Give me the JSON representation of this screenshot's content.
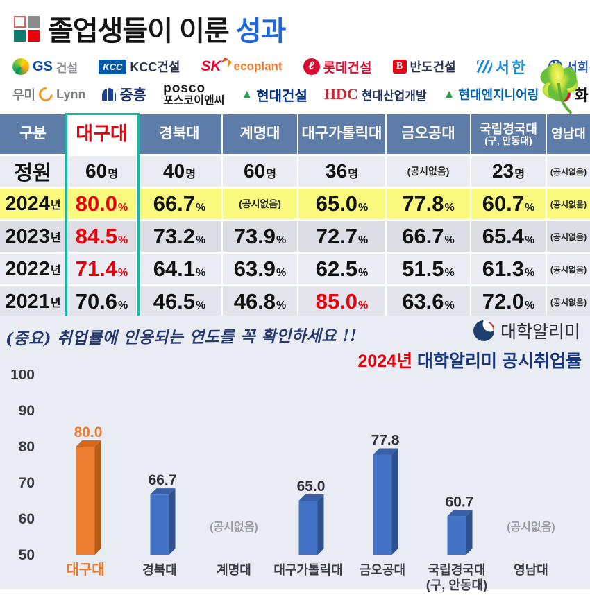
{
  "title": {
    "black": "졸업생들이 이룬",
    "accent": "성과"
  },
  "partners": {
    "row1": [
      {
        "part1": "GS",
        "part2": "건설"
      },
      {
        "badge": "KCC",
        "part1": "KCC건설"
      },
      {
        "part1": "SK",
        "part2": "ecoplant"
      },
      {
        "icon_letter": "ℓ",
        "part1": "롯데건설"
      },
      {
        "badge": "B",
        "part1": "반도건설"
      },
      {
        "part1": "서한"
      },
      {
        "part1": "서희건설"
      }
    ],
    "row2": [
      {
        "part1": "우미",
        "part2": "Lynn"
      },
      {
        "part1": "중흥"
      },
      {
        "line1": "posco",
        "line2": "포스코이앤씨"
      },
      {
        "part1": "현대건설"
      },
      {
        "badge": "HDC",
        "part1": "현대산업개발"
      },
      {
        "part1": "현대엔지니어링"
      },
      {
        "part1": "화 성"
      }
    ]
  },
  "table": {
    "header": [
      "구분",
      "대구대",
      "경북대",
      "계명대",
      "대구가톨릭대",
      "금오공대",
      "국립경국대",
      "영남대"
    ],
    "header_sub_col6": "(구, 안동대)",
    "no_data_text": "(공시없음)",
    "rows": [
      {
        "label": "정원",
        "label_suffix": "",
        "unit": "명",
        "values": [
          "60",
          "40",
          "60",
          "36",
          "(공시없음)",
          "23",
          "(공시없음)"
        ]
      },
      {
        "label": "2024",
        "label_suffix": "년",
        "unit": "%",
        "values": [
          "80.0",
          "66.7",
          "(공시없음)",
          "65.0",
          "77.8",
          "60.7",
          "(공시없음)"
        ]
      },
      {
        "label": "2023",
        "label_suffix": "년",
        "unit": "%",
        "values": [
          "84.5",
          "73.2",
          "73.9",
          "72.7",
          "66.7",
          "65.4",
          "(공시없음)"
        ]
      },
      {
        "label": "2022",
        "label_suffix": "년",
        "unit": "%",
        "values": [
          "71.4",
          "64.1",
          "63.9",
          "62.5",
          "51.5",
          "61.3",
          "(공시없음)"
        ]
      },
      {
        "label": "2021",
        "label_suffix": "년",
        "unit": "%",
        "values": [
          "70.6",
          "46.5",
          "46.8",
          "85.0",
          "63.6",
          "72.0",
          "(공시없음)"
        ]
      }
    ],
    "highlight_row": 1,
    "red_cells": [
      [
        1,
        0
      ],
      [
        2,
        0
      ],
      [
        3,
        0
      ],
      [
        4,
        3
      ]
    ],
    "colors": {
      "header_bg": "#5d7ca8",
      "highlight_yellow": "#f8f97d",
      "accent_red": "#e8000b",
      "daegu_box_teal": "#17b8a5"
    }
  },
  "note": "(중요) 취업률에 인용되는 연도를 꼭 확인하세요 !!",
  "alimi": {
    "name": "대학알리미"
  },
  "chart_heading": {
    "year": "2024년",
    "rest": " 대학알리미 공시취업률"
  },
  "chart_data": {
    "type": "bar",
    "title": "2024년 대학알리미 공시취업률",
    "categories": [
      "대구대",
      "경북대",
      "계명대",
      "대구가톨릭대",
      "금오공대",
      "국립경국대\n(구, 안동대)",
      "영남대"
    ],
    "values": [
      80.0,
      66.7,
      null,
      65.0,
      77.8,
      60.7,
      null
    ],
    "no_data_label": "(공시없음)",
    "ylim": [
      50,
      100
    ],
    "yticks": [
      50,
      60,
      70,
      80,
      90,
      100
    ],
    "grid": false,
    "legend": false,
    "bar_color": "#4472c4",
    "bar_side_color": "#2f528f",
    "bar_top_color": "#3a60a8",
    "highlight_index": 0,
    "highlight_color": "#ed7d31",
    "highlight_side_color": "#b85c14",
    "highlight_top_color": "#d4691e"
  }
}
